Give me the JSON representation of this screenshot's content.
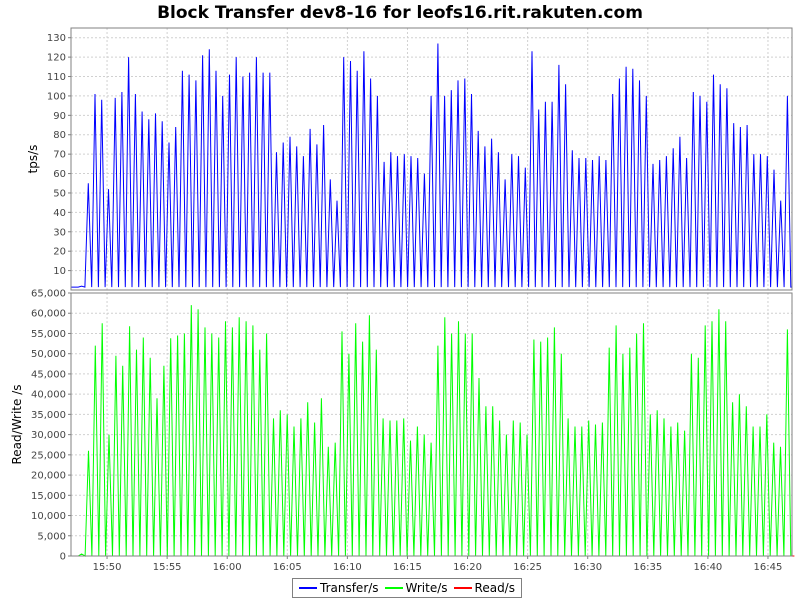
{
  "chart_data": {
    "type": "line",
    "title": "Block Transfer dev8-16 for leofs16.rit.rakuten.com",
    "x_ticks": [
      "15:50",
      "15:55",
      "16:00",
      "16:05",
      "16:10",
      "16:15",
      "16:20",
      "16:25",
      "16:30",
      "16:35",
      "16:40",
      "16:45"
    ],
    "xlim": [
      "15:47",
      "16:47"
    ],
    "grid": true,
    "legend": "bottom",
    "panels": [
      {
        "ylabel": "tps/s",
        "ylim": [
          0,
          135
        ],
        "y_ticks": [
          "10",
          "20",
          "30",
          "40",
          "50",
          "60",
          "70",
          "80",
          "90",
          "100",
          "110",
          "120",
          "130"
        ],
        "series": [
          {
            "name": "Transfer/s",
            "color": "#0000ff",
            "peaks": [
              2,
              55,
              101,
              98,
              52,
              99,
              102,
              120,
              101,
              92,
              88,
              91,
              87,
              76,
              84,
              113,
              111,
              108,
              121,
              124,
              113,
              100,
              111,
              120,
              110,
              112,
              120,
              112,
              112,
              71,
              76,
              79,
              74,
              69,
              83,
              75,
              85,
              57,
              46,
              120,
              118,
              113,
              123,
              109,
              100,
              66,
              71,
              69,
              70,
              69,
              68,
              60,
              100,
              127,
              100,
              103,
              108,
              109,
              101,
              82,
              74,
              78,
              71,
              57,
              70,
              69,
              63,
              123,
              93,
              97,
              97,
              116,
              106,
              72,
              68,
              68,
              67,
              69,
              67,
              101,
              109,
              115,
              114,
              108,
              100,
              65,
              67,
              69,
              73,
              79,
              68,
              102,
              100,
              97,
              111,
              106,
              104,
              86,
              84,
              85,
              70,
              70,
              69,
              62,
              46,
              100
            ]
          }
        ]
      },
      {
        "ylabel": "Read/Write /s",
        "ylim": [
          0,
          65000
        ],
        "y_ticks": [
          "0",
          "5,000",
          "10,000",
          "15,000",
          "20,000",
          "25,000",
          "30,000",
          "35,000",
          "40,000",
          "45,000",
          "50,000",
          "55,000",
          "60,000",
          "65,000"
        ],
        "series": [
          {
            "name": "Write/s",
            "color": "#00ff00",
            "peaks": [
              500,
              26000,
              52000,
              57500,
              30000,
              49500,
              47000,
              56800,
              51000,
              54000,
              49000,
              39000,
              47000,
              53800,
              54500,
              55000,
              62000,
              61000,
              56500,
              55000,
              54000,
              58000,
              56500,
              59000,
              58000,
              57000,
              51000,
              55000,
              34000,
              36000,
              35000,
              32000,
              34000,
              38000,
              33000,
              39000,
              27000,
              28000,
              55500,
              50000,
              57500,
              53000,
              59500,
              51000,
              34000,
              33500,
              33500,
              34000,
              28500,
              32000,
              30000,
              28000,
              52000,
              59000,
              55000,
              58000,
              55000,
              55000,
              44000,
              37000,
              37000,
              33500,
              30000,
              33500,
              33000,
              30000,
              53500,
              53000,
              54000,
              56500,
              50000,
              34000,
              32000,
              32000,
              33500,
              32500,
              33000,
              51500,
              57000,
              50000,
              51500,
              55000,
              57500,
              35000,
              36000,
              34000,
              32000,
              33000,
              31000,
              50000,
              49000,
              57000,
              58000,
              61000,
              58000,
              38000,
              40000,
              37000,
              32000,
              32000,
              35000,
              28000,
              27000,
              56000
            ]
          },
          {
            "name": "Read/s",
            "color": "#ff0000",
            "peaks": [
              0
            ]
          }
        ]
      }
    ]
  }
}
